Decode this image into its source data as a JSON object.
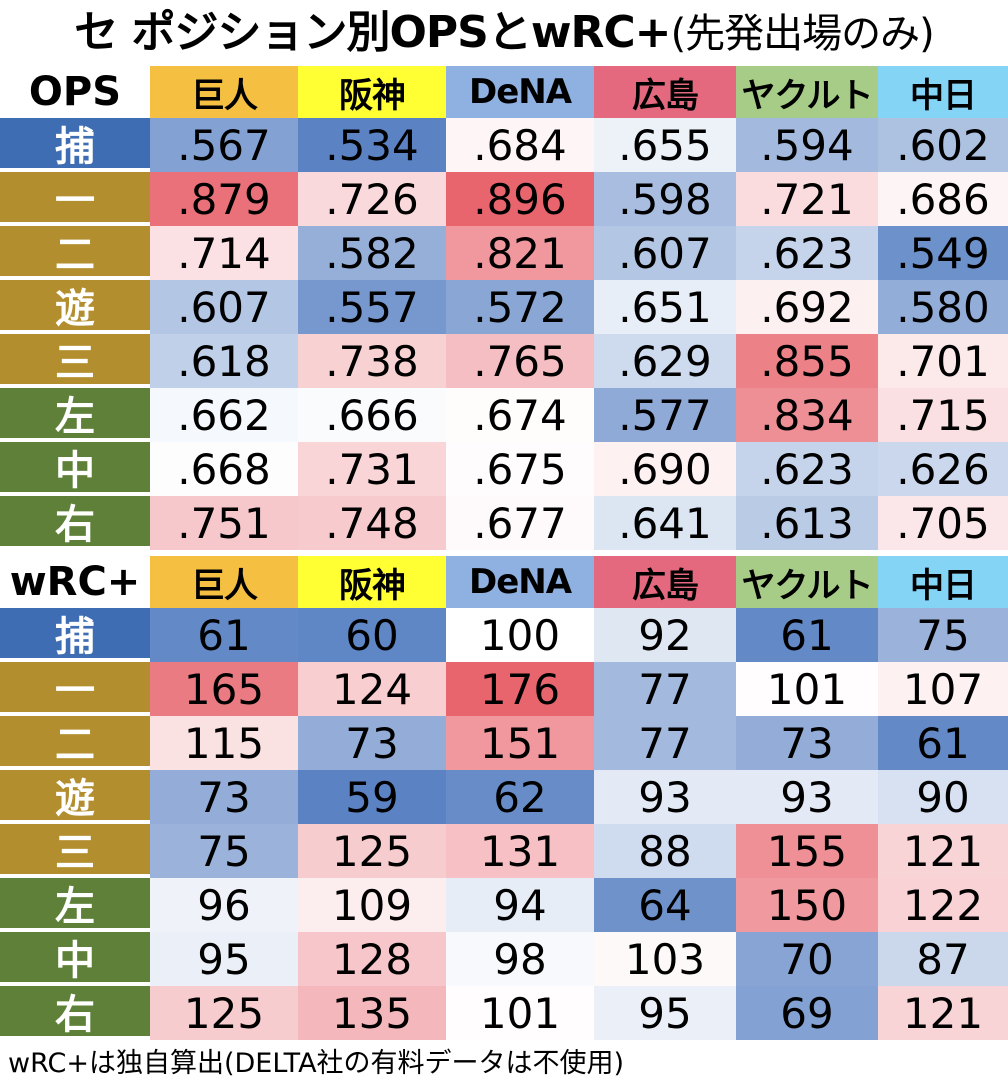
{
  "title": {
    "main": "セ ポジション別OPSとwRC+",
    "suffix": "(先発出場のみ)"
  },
  "teams": [
    {
      "name": "巨人",
      "color": "#F5BF41"
    },
    {
      "name": "阪神",
      "color": "#FFFF33"
    },
    {
      "name": "DeNA",
      "color": "#8EB1E2"
    },
    {
      "name": "広島",
      "color": "#E5697E"
    },
    {
      "name": "ヤクルト",
      "color": "#A6CC88"
    },
    {
      "name": "中日",
      "color": "#84D4F6"
    }
  ],
  "positions": [
    {
      "name": "捕",
      "color": "#3F6DB3"
    },
    {
      "name": "一",
      "color": "#B28E2E"
    },
    {
      "name": "二",
      "color": "#B28E2E"
    },
    {
      "name": "遊",
      "color": "#B28E2E"
    },
    {
      "name": "三",
      "color": "#B28E2E"
    },
    {
      "name": "左",
      "color": "#5E8038"
    },
    {
      "name": "中",
      "color": "#5E8038"
    },
    {
      "name": "右",
      "color": "#5E8038"
    }
  ],
  "chart_data": [
    {
      "type": "table",
      "metric": "OPS",
      "midpoint": 0.67,
      "low": 0.534,
      "high": 0.896,
      "columns": [
        "巨人",
        "阪神",
        "DeNA",
        "広島",
        "ヤクルト",
        "中日"
      ],
      "rows": [
        "捕",
        "一",
        "二",
        "遊",
        "三",
        "左",
        "中",
        "右"
      ],
      "labels": [
        [
          ".567",
          ".534",
          ".684",
          ".655",
          ".594",
          ".602"
        ],
        [
          ".879",
          ".726",
          ".896",
          ".598",
          ".721",
          ".686"
        ],
        [
          ".714",
          ".582",
          ".821",
          ".607",
          ".623",
          ".549"
        ],
        [
          ".607",
          ".557",
          ".572",
          ".651",
          ".692",
          ".580"
        ],
        [
          ".618",
          ".738",
          ".765",
          ".629",
          ".855",
          ".701"
        ],
        [
          ".662",
          ".666",
          ".674",
          ".577",
          ".834",
          ".715"
        ],
        [
          ".668",
          ".731",
          ".675",
          ".690",
          ".623",
          ".626"
        ],
        [
          ".751",
          ".748",
          ".677",
          ".641",
          ".613",
          ".705"
        ]
      ],
      "values": [
        [
          0.567,
          0.534,
          0.684,
          0.655,
          0.594,
          0.602
        ],
        [
          0.879,
          0.726,
          0.896,
          0.598,
          0.721,
          0.686
        ],
        [
          0.714,
          0.582,
          0.821,
          0.607,
          0.623,
          0.549
        ],
        [
          0.607,
          0.557,
          0.572,
          0.651,
          0.692,
          0.58
        ],
        [
          0.618,
          0.738,
          0.765,
          0.629,
          0.855,
          0.701
        ],
        [
          0.662,
          0.666,
          0.674,
          0.577,
          0.834,
          0.715
        ],
        [
          0.668,
          0.731,
          0.675,
          0.69,
          0.623,
          0.626
        ],
        [
          0.751,
          0.748,
          0.677,
          0.641,
          0.613,
          0.705
        ]
      ]
    },
    {
      "type": "table",
      "metric": "wRC+",
      "midpoint": 100,
      "low": 59,
      "high": 176,
      "columns": [
        "巨人",
        "阪神",
        "DeNA",
        "広島",
        "ヤクルト",
        "中日"
      ],
      "rows": [
        "捕",
        "一",
        "二",
        "遊",
        "三",
        "左",
        "中",
        "右"
      ],
      "labels": [
        [
          "61",
          "60",
          "100",
          "92",
          "61",
          "75"
        ],
        [
          "165",
          "124",
          "176",
          "77",
          "101",
          "107"
        ],
        [
          "115",
          "73",
          "151",
          "77",
          "73",
          "61"
        ],
        [
          "73",
          "59",
          "62",
          "93",
          "93",
          "90"
        ],
        [
          "75",
          "125",
          "131",
          "88",
          "155",
          "121"
        ],
        [
          "96",
          "109",
          "94",
          "64",
          "150",
          "122"
        ],
        [
          "95",
          "128",
          "98",
          "103",
          "70",
          "87"
        ],
        [
          "125",
          "135",
          "101",
          "95",
          "69",
          "121"
        ]
      ],
      "values": [
        [
          61,
          60,
          100,
          92,
          61,
          75
        ],
        [
          165,
          124,
          176,
          77,
          101,
          107
        ],
        [
          115,
          73,
          151,
          77,
          73,
          61
        ],
        [
          73,
          59,
          62,
          93,
          93,
          90
        ],
        [
          75,
          125,
          131,
          88,
          155,
          121
        ],
        [
          96,
          109,
          94,
          64,
          150,
          122
        ],
        [
          95,
          128,
          98,
          103,
          70,
          87
        ],
        [
          125,
          135,
          101,
          95,
          69,
          121
        ]
      ]
    }
  ],
  "scale_colors": {
    "low": "#5B83C4",
    "mid": "#FFFFFF",
    "high": "#E8656E"
  },
  "footnote": "wRC+は独自算出(DELTA社の有料データは不使用)"
}
